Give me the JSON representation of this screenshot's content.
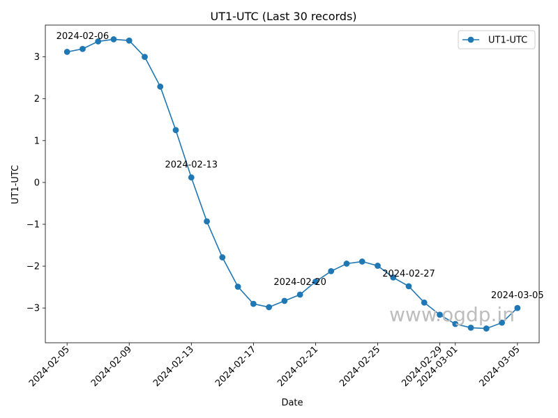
{
  "chart_data": {
    "type": "line",
    "title": "UT1-UTC (Last 30 records)",
    "xlabel": "Date",
    "ylabel": "UT1-UTC",
    "x": [
      "2024-02-05",
      "2024-02-06",
      "2024-02-07",
      "2024-02-08",
      "2024-02-09",
      "2024-02-10",
      "2024-02-11",
      "2024-02-12",
      "2024-02-13",
      "2024-02-14",
      "2024-02-15",
      "2024-02-16",
      "2024-02-17",
      "2024-02-18",
      "2024-02-19",
      "2024-02-20",
      "2024-02-21",
      "2024-02-22",
      "2024-02-23",
      "2024-02-24",
      "2024-02-25",
      "2024-02-26",
      "2024-02-27",
      "2024-02-28",
      "2024-02-29",
      "2024-03-01",
      "2024-03-02",
      "2024-03-03",
      "2024-03-04",
      "2024-03-05"
    ],
    "series": [
      {
        "name": "UT1-UTC",
        "color": "#1f77b4",
        "marker": "circle",
        "values": [
          3.12,
          3.19,
          3.37,
          3.42,
          3.39,
          3.0,
          2.29,
          1.25,
          0.12,
          -0.93,
          -1.79,
          -2.49,
          -2.9,
          -2.98,
          -2.83,
          -2.68,
          -2.37,
          -2.12,
          -1.94,
          -1.89,
          -1.99,
          -2.27,
          -2.48,
          -2.87,
          -3.16,
          -3.38,
          -3.47,
          -3.49,
          -3.35,
          -3.0
        ]
      }
    ],
    "x_ticks": [
      "2024-02-05",
      "2024-02-09",
      "2024-02-13",
      "2024-02-17",
      "2024-02-21",
      "2024-02-25",
      "2024-02-29",
      "2024-03-01",
      "2024-03-05"
    ],
    "y_ticks": [
      3,
      2,
      1,
      0,
      -1,
      -2,
      -3
    ],
    "y_tick_labels": [
      "3",
      "2",
      "1",
      "0",
      "−1",
      "−2",
      "−3"
    ],
    "xlim": [
      "2024-02-03 14:24",
      "2024-03-06 09:36"
    ],
    "ylim": [
      -3.83,
      3.76
    ],
    "annotations": [
      {
        "text": "2024-02-06",
        "x": "2024-02-06",
        "y": 3.19
      },
      {
        "text": "2024-02-13",
        "x": "2024-02-13",
        "y": 0.12
      },
      {
        "text": "2024-02-20",
        "x": "2024-02-20",
        "y": -2.68
      },
      {
        "text": "2024-02-27",
        "x": "2024-02-27",
        "y": -2.48
      },
      {
        "text": "2024-03-05",
        "x": "2024-03-05",
        "y": -3.0
      }
    ],
    "legend": {
      "placement": "top-right",
      "entries": [
        "UT1-UTC"
      ]
    },
    "grid": false,
    "watermark": "www.ogdp.in"
  }
}
